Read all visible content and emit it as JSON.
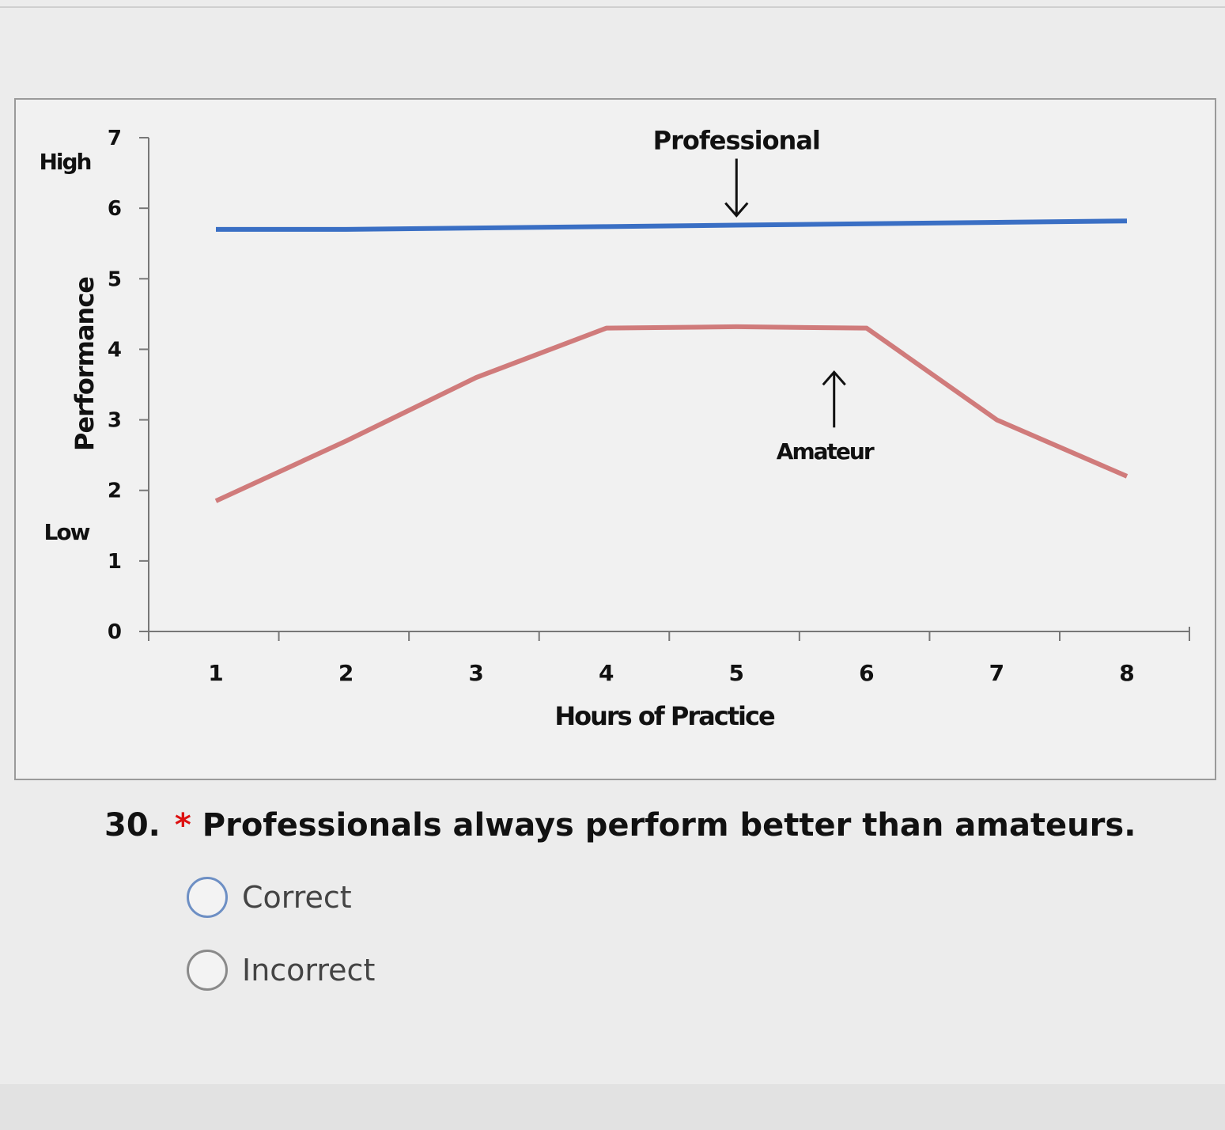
{
  "chart_data": {
    "type": "line",
    "x": [
      1,
      2,
      3,
      4,
      5,
      6,
      7,
      8
    ],
    "xlabel": "Hours of Practice",
    "ylabel": "Performance",
    "ylim": [
      0,
      7
    ],
    "yticks": [
      0,
      1,
      2,
      3,
      4,
      5,
      6,
      7
    ],
    "y_high_label": "High",
    "y_low_label": "Low",
    "series": [
      {
        "name": "Professional",
        "color": "#3a6fc4",
        "values": [
          5.7,
          5.7,
          5.72,
          5.74,
          5.76,
          5.78,
          5.8,
          5.82
        ]
      },
      {
        "name": "Amateur",
        "color": "#d07b7b",
        "values": [
          1.85,
          2.7,
          3.6,
          4.3,
          4.32,
          4.3,
          3.0,
          2.2
        ]
      }
    ],
    "annotations": [
      {
        "text": "Professional",
        "arrow": "down",
        "series": "Professional",
        "x": 5.0
      },
      {
        "text": "Amateur",
        "arrow": "up",
        "series": "Amateur",
        "x": 5.75
      }
    ],
    "grid": false,
    "legend": "none"
  },
  "question": {
    "number": "30.",
    "required_mark": "*",
    "text": "Professionals always perform better than amateurs."
  },
  "options": [
    {
      "label": "Correct",
      "selected": false
    },
    {
      "label": "Incorrect",
      "selected": false
    }
  ]
}
